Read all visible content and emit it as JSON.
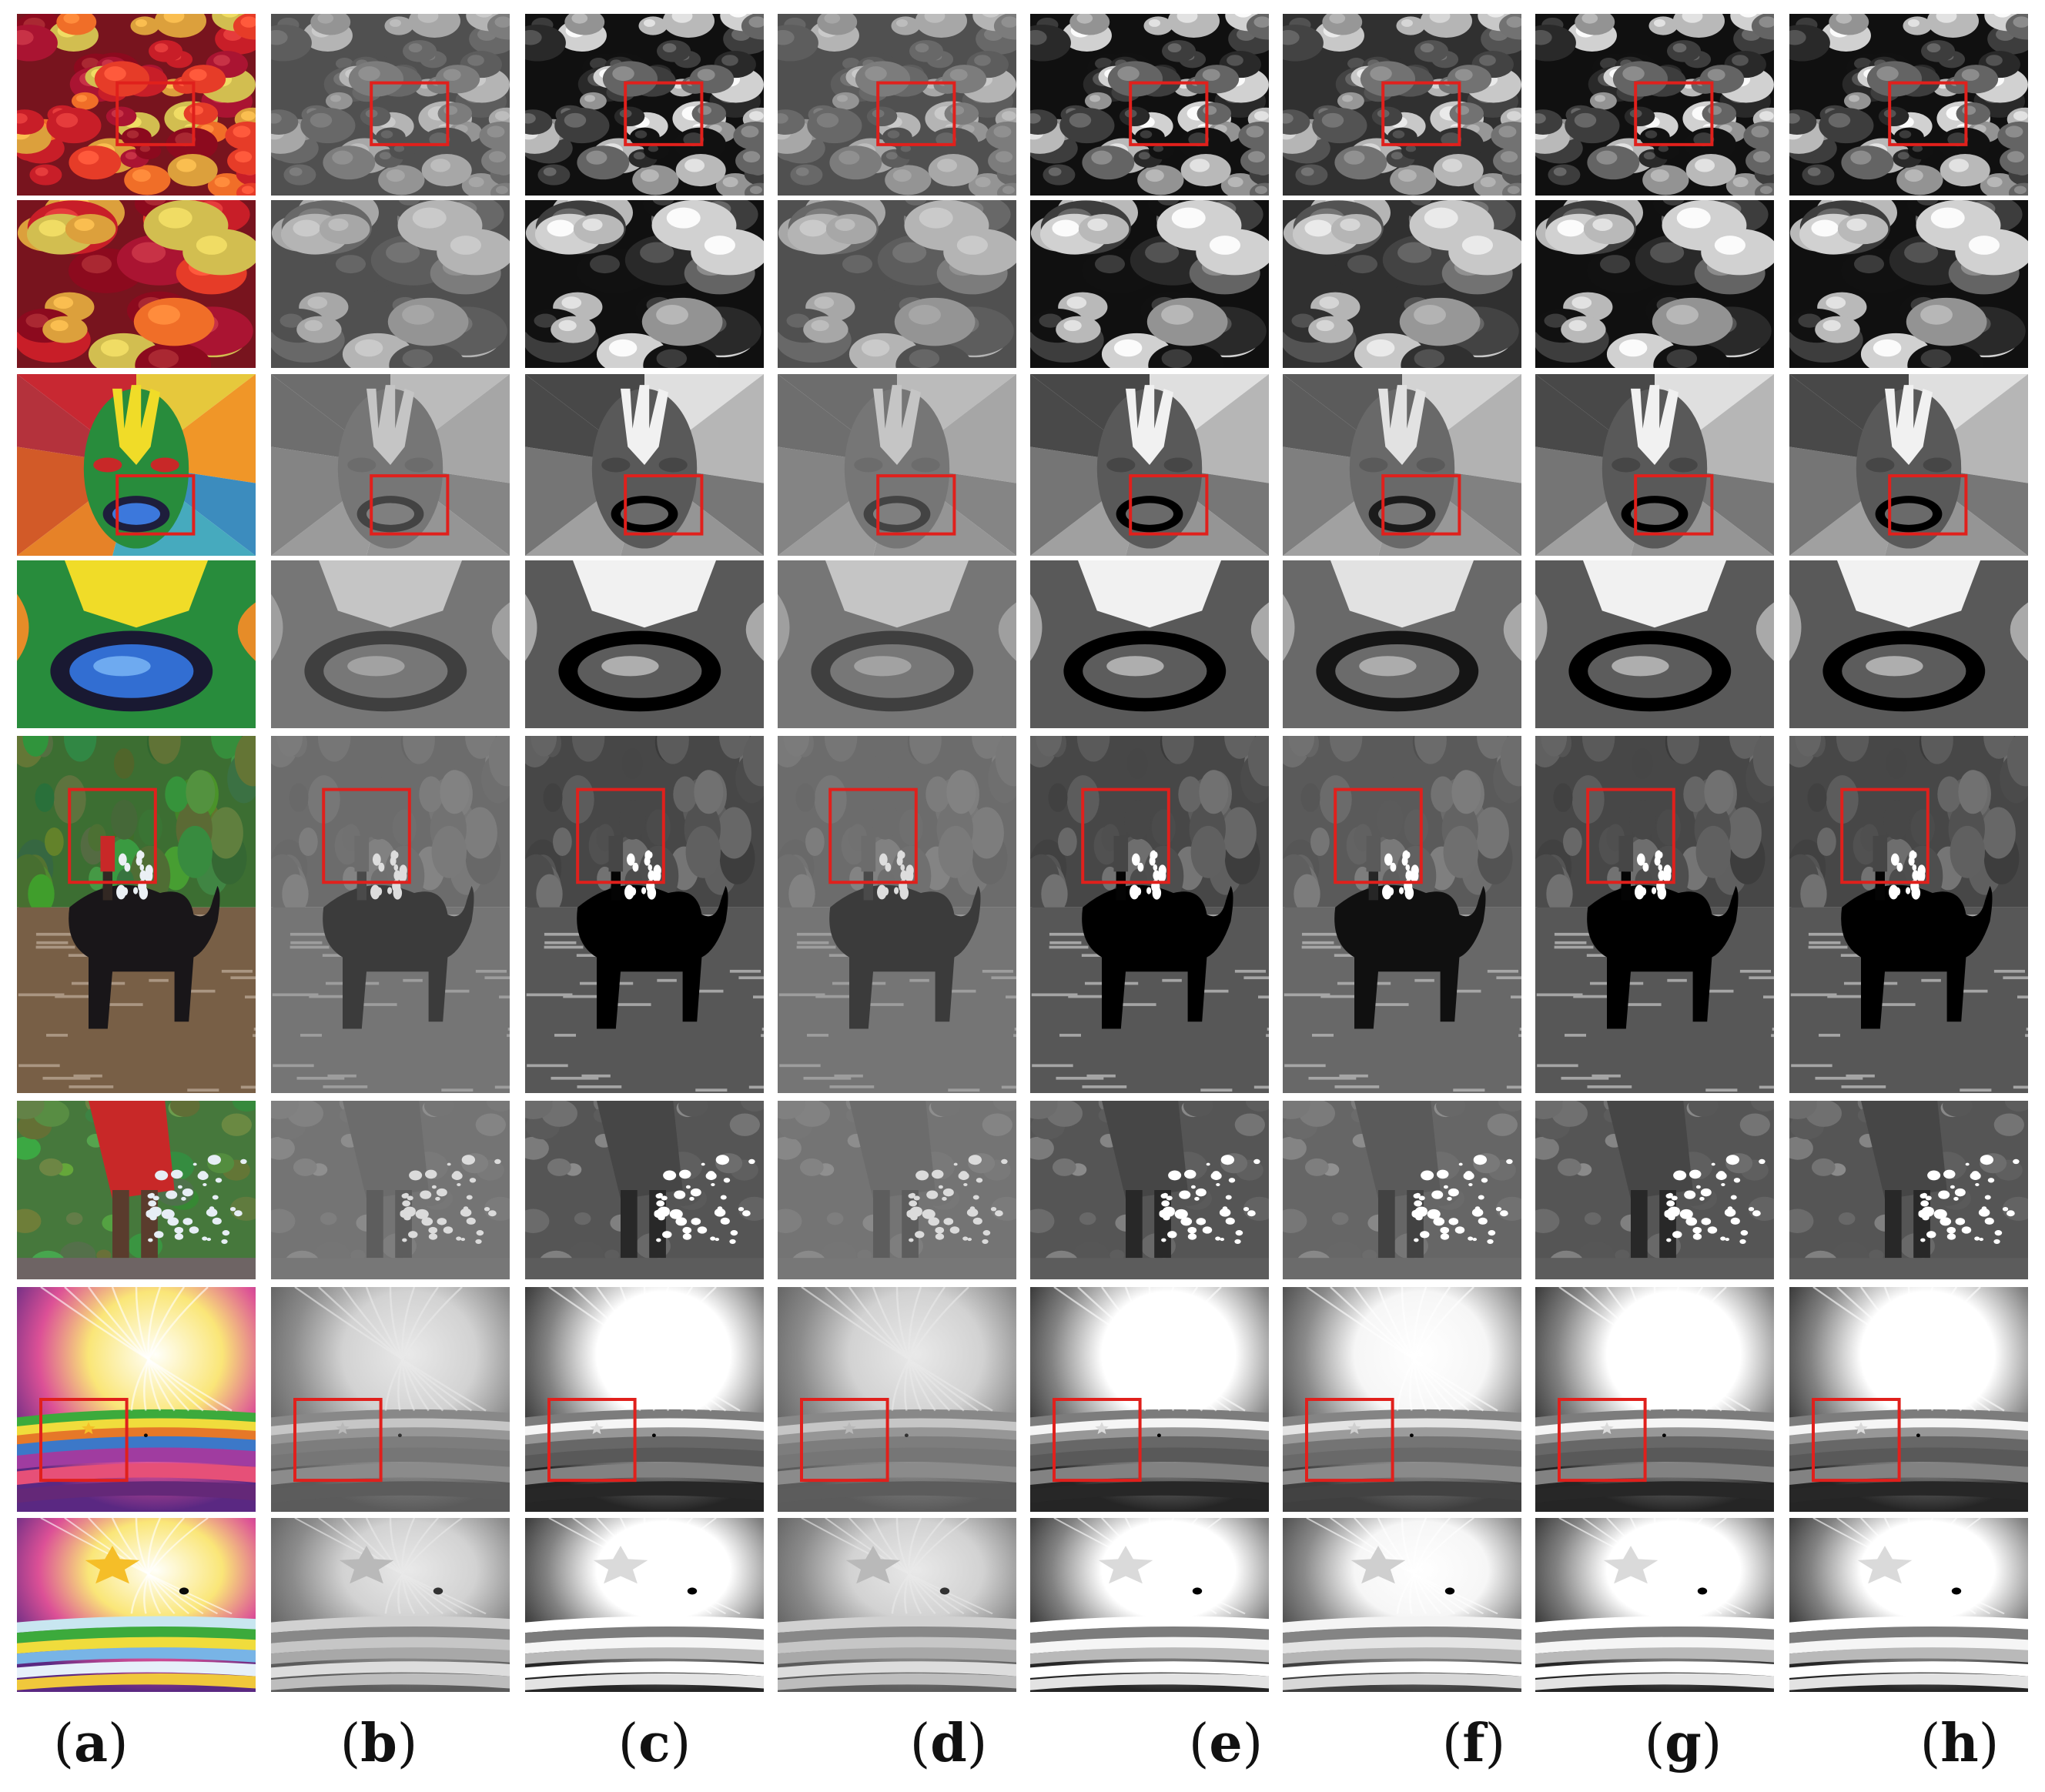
{
  "figure": {
    "labels": [
      {
        "open": "(",
        "letter": "a",
        "close": ")"
      },
      {
        "open": "(",
        "letter": "b",
        "close": ")"
      },
      {
        "open": "(",
        "letter": "c",
        "close": ")"
      },
      {
        "open": "(",
        "letter": "d",
        "close": ")"
      },
      {
        "open": "(",
        "letter": "e",
        "close": ")"
      },
      {
        "open": "(",
        "letter": "f",
        "close": ")"
      },
      {
        "open": "(",
        "letter": "g",
        "close": ")"
      },
      {
        "open": "(",
        "letter": "h",
        "close": ")"
      }
    ],
    "rows": [
      {
        "scene": "flowers",
        "view": "full",
        "roi": true
      },
      {
        "scene": "flowers",
        "view": "zoom",
        "roi": false
      },
      {
        "scene": "mask",
        "view": "full",
        "roi": true
      },
      {
        "scene": "mask",
        "view": "zoom",
        "roi": false
      },
      {
        "scene": "elephant",
        "view": "full",
        "roi": true
      },
      {
        "scene": "elephant",
        "view": "zoom",
        "roi": false
      },
      {
        "scene": "swirl",
        "view": "full",
        "roi": true
      },
      {
        "scene": "swirl",
        "view": "zoom",
        "roi": false
      }
    ],
    "columns": [
      {
        "mode": "color"
      },
      {
        "mode": "gray",
        "contrast": "low"
      },
      {
        "mode": "gray",
        "contrast": "high"
      },
      {
        "mode": "gray",
        "contrast": "low"
      },
      {
        "mode": "gray",
        "contrast": "high"
      },
      {
        "mode": "gray",
        "contrast": "mid"
      },
      {
        "mode": "gray",
        "contrast": "high"
      },
      {
        "mode": "gray",
        "contrast": "high"
      }
    ],
    "roi_box_color": "#e0201c"
  }
}
